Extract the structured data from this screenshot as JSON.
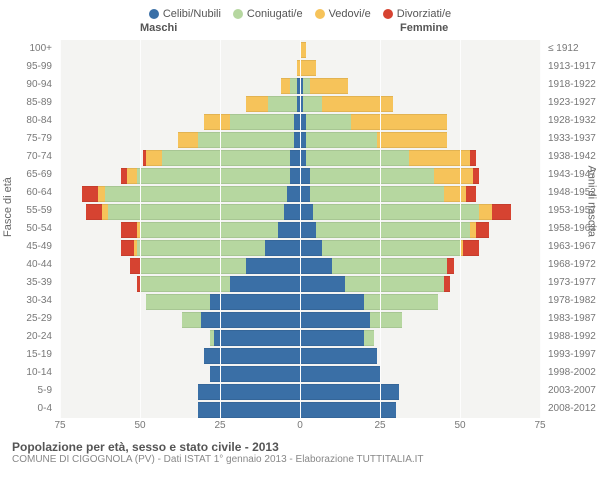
{
  "legend": [
    {
      "label": "Celibi/Nubili",
      "color": "#3a6fa6"
    },
    {
      "label": "Coniugati/e",
      "color": "#b6d7a0"
    },
    {
      "label": "Vedovi/e",
      "color": "#f6c35a"
    },
    {
      "label": "Divorziati/e",
      "color": "#d64331"
    }
  ],
  "headers": {
    "m": "Maschi",
    "f": "Femmine"
  },
  "axis": {
    "left_title": "Fasce di età",
    "right_title": "Anni di nascita",
    "x_ticks": [
      75,
      50,
      25,
      0,
      25,
      50,
      75
    ],
    "x_max": 75
  },
  "bands": [
    {
      "age": "0-4",
      "year": "2008-2012",
      "m": {
        "cel": 32,
        "con": 0,
        "ved": 0,
        "div": 0
      },
      "f": {
        "cel": 30,
        "con": 0,
        "ved": 0,
        "div": 0
      }
    },
    {
      "age": "5-9",
      "year": "2003-2007",
      "m": {
        "cel": 32,
        "con": 0,
        "ved": 0,
        "div": 0
      },
      "f": {
        "cel": 31,
        "con": 0,
        "ved": 0,
        "div": 0
      }
    },
    {
      "age": "10-14",
      "year": "1998-2002",
      "m": {
        "cel": 28,
        "con": 0,
        "ved": 0,
        "div": 0
      },
      "f": {
        "cel": 25,
        "con": 0,
        "ved": 0,
        "div": 0
      }
    },
    {
      "age": "15-19",
      "year": "1993-1997",
      "m": {
        "cel": 30,
        "con": 0,
        "ved": 0,
        "div": 0
      },
      "f": {
        "cel": 24,
        "con": 0,
        "ved": 0,
        "div": 0
      }
    },
    {
      "age": "20-24",
      "year": "1988-1992",
      "m": {
        "cel": 27,
        "con": 1,
        "ved": 0,
        "div": 0
      },
      "f": {
        "cel": 20,
        "con": 3,
        "ved": 0,
        "div": 0
      }
    },
    {
      "age": "25-29",
      "year": "1983-1987",
      "m": {
        "cel": 31,
        "con": 6,
        "ved": 0,
        "div": 0
      },
      "f": {
        "cel": 22,
        "con": 10,
        "ved": 0,
        "div": 0
      }
    },
    {
      "age": "30-34",
      "year": "1978-1982",
      "m": {
        "cel": 28,
        "con": 20,
        "ved": 0,
        "div": 0
      },
      "f": {
        "cel": 20,
        "con": 23,
        "ved": 0,
        "div": 0
      }
    },
    {
      "age": "35-39",
      "year": "1973-1977",
      "m": {
        "cel": 22,
        "con": 28,
        "ved": 0,
        "div": 1
      },
      "f": {
        "cel": 14,
        "con": 31,
        "ved": 0,
        "div": 2
      }
    },
    {
      "age": "40-44",
      "year": "1968-1972",
      "m": {
        "cel": 17,
        "con": 33,
        "ved": 0,
        "div": 3
      },
      "f": {
        "cel": 10,
        "con": 36,
        "ved": 0,
        "div": 2
      }
    },
    {
      "age": "45-49",
      "year": "1963-1967",
      "m": {
        "cel": 11,
        "con": 40,
        "ved": 1,
        "div": 4
      },
      "f": {
        "cel": 7,
        "con": 43,
        "ved": 1,
        "div": 5
      }
    },
    {
      "age": "50-54",
      "year": "1958-1962",
      "m": {
        "cel": 7,
        "con": 43,
        "ved": 1,
        "div": 5
      },
      "f": {
        "cel": 5,
        "con": 48,
        "ved": 2,
        "div": 4
      }
    },
    {
      "age": "55-59",
      "year": "1953-1957",
      "m": {
        "cel": 5,
        "con": 55,
        "ved": 2,
        "div": 5
      },
      "f": {
        "cel": 4,
        "con": 52,
        "ved": 4,
        "div": 6
      }
    },
    {
      "age": "60-64",
      "year": "1948-1952",
      "m": {
        "cel": 4,
        "con": 57,
        "ved": 2,
        "div": 5
      },
      "f": {
        "cel": 3,
        "con": 42,
        "ved": 7,
        "div": 3
      }
    },
    {
      "age": "65-69",
      "year": "1943-1947",
      "m": {
        "cel": 3,
        "con": 48,
        "ved": 3,
        "div": 2
      },
      "f": {
        "cel": 3,
        "con": 39,
        "ved": 12,
        "div": 2
      }
    },
    {
      "age": "70-74",
      "year": "1938-1942",
      "m": {
        "cel": 3,
        "con": 40,
        "ved": 5,
        "div": 1
      },
      "f": {
        "cel": 2,
        "con": 32,
        "ved": 19,
        "div": 2
      }
    },
    {
      "age": "75-79",
      "year": "1933-1937",
      "m": {
        "cel": 2,
        "con": 30,
        "ved": 6,
        "div": 0
      },
      "f": {
        "cel": 2,
        "con": 22,
        "ved": 22,
        "div": 0
      }
    },
    {
      "age": "80-84",
      "year": "1928-1932",
      "m": {
        "cel": 2,
        "con": 20,
        "ved": 8,
        "div": 0
      },
      "f": {
        "cel": 2,
        "con": 14,
        "ved": 30,
        "div": 0
      }
    },
    {
      "age": "85-89",
      "year": "1923-1927",
      "m": {
        "cel": 1,
        "con": 9,
        "ved": 7,
        "div": 0
      },
      "f": {
        "cel": 1,
        "con": 6,
        "ved": 22,
        "div": 0
      }
    },
    {
      "age": "90-94",
      "year": "1918-1922",
      "m": {
        "cel": 1,
        "con": 2,
        "ved": 3,
        "div": 0
      },
      "f": {
        "cel": 1,
        "con": 2,
        "ved": 12,
        "div": 0
      }
    },
    {
      "age": "95-99",
      "year": "1913-1917",
      "m": {
        "cel": 0,
        "con": 0,
        "ved": 1,
        "div": 0
      },
      "f": {
        "cel": 0,
        "con": 0,
        "ved": 5,
        "div": 0
      }
    },
    {
      "age": "100+",
      "year": "≤ 1912",
      "m": {
        "cel": 0,
        "con": 0,
        "ved": 0,
        "div": 0
      },
      "f": {
        "cel": 0,
        "con": 0,
        "ved": 2,
        "div": 0
      }
    }
  ],
  "caption": {
    "line1": "Popolazione per età, sesso e stato civile - 2013",
    "line2": "COMUNE DI CIGOGNOLA (PV) - Dati ISTAT 1° gennaio 2013 - Elaborazione TUTTITALIA.IT"
  },
  "colors": {
    "cel": "#3a6fa6",
    "con": "#b6d7a0",
    "ved": "#f6c35a",
    "div": "#d64331"
  }
}
